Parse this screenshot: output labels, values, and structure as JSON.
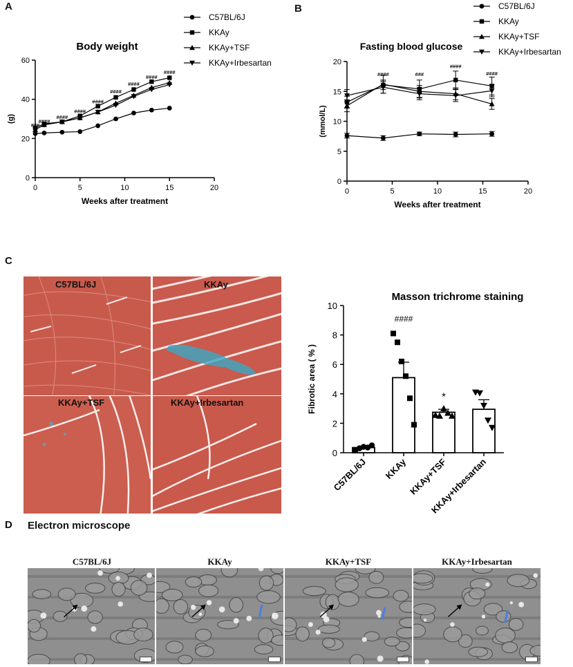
{
  "colors": {
    "stroke": "#000000",
    "tissue": "#c9574a",
    "fibrosis": "#3aa9c6",
    "em": "#8e8e8e"
  },
  "panels": {
    "a": "A",
    "b": "B",
    "c": "C",
    "d": "D"
  },
  "legend_labels": [
    "C57BL/6J",
    "KKAy",
    "KKAy+TSF",
    "KKAy+Irbesartan"
  ],
  "histology_labels": [
    "C57BL/6J",
    "KKAy",
    "KKAy+TSF",
    "KKAy+Irbesartan"
  ],
  "em_title": "Electron microscope",
  "em_labels": [
    "C57BL/6J",
    "KKAy",
    "KKAy+TSF",
    "KKAy+Irbesartan"
  ],
  "chart_data": [
    {
      "type": "line",
      "title": "Body weight",
      "xlabel": "Weeks after treatment",
      "ylabel": "(g)",
      "xlim": [
        0,
        20
      ],
      "ylim": [
        0,
        60
      ],
      "xticks": [
        0,
        5,
        10,
        15,
        20
      ],
      "yticks": [
        0,
        20,
        40,
        60
      ],
      "x": [
        0,
        1,
        3,
        5,
        7,
        9,
        11,
        13,
        15
      ],
      "series": [
        {
          "name": "C57BL/6J",
          "marker": "circle",
          "values": [
            22.5,
            22.8,
            23.2,
            23.5,
            26.5,
            30,
            33,
            34.5,
            35.5
          ]
        },
        {
          "name": "KKAy",
          "marker": "square",
          "values": [
            25.5,
            27.5,
            28.5,
            31.5,
            36.5,
            41,
            45,
            49,
            51
          ]
        },
        {
          "name": "KKAy+TSF",
          "marker": "triangle-up",
          "values": [
            24.5,
            27,
            28.5,
            30.5,
            33.5,
            38,
            42,
            46,
            48.5
          ]
        },
        {
          "name": "KKAy+Irbesartan",
          "marker": "triangle-down",
          "values": [
            24.5,
            27,
            28.5,
            30.5,
            33.5,
            37,
            41.5,
            45,
            47.5
          ]
        }
      ],
      "annotations": [
        {
          "x": 0,
          "y": 26,
          "text": "###"
        },
        {
          "x": 1,
          "y": 27.8,
          "text": "####"
        },
        {
          "x": 3,
          "y": 30,
          "text": "####"
        },
        {
          "x": 5,
          "y": 33,
          "text": "####"
        },
        {
          "x": 7,
          "y": 38,
          "text": "####"
        },
        {
          "x": 9,
          "y": 43,
          "text": "####"
        },
        {
          "x": 11,
          "y": 47,
          "text": "####"
        },
        {
          "x": 13,
          "y": 50.5,
          "text": "####"
        },
        {
          "x": 15,
          "y": 53,
          "text": "####"
        }
      ]
    },
    {
      "type": "line",
      "title": "Fasting blood glucose",
      "xlabel": "Weeks after treatment",
      "ylabel": "(mmol/L)",
      "xlim": [
        0,
        20
      ],
      "ylim": [
        0,
        20
      ],
      "xticks": [
        0,
        5,
        10,
        15,
        20
      ],
      "yticks": [
        0,
        5,
        10,
        15,
        20
      ],
      "x": [
        0,
        4,
        8,
        12,
        16
      ],
      "series": [
        {
          "name": "C57BL/6J",
          "marker": "circle",
          "values": [
            7.6,
            7.2,
            7.9,
            7.8,
            7.9
          ],
          "errors": [
            0.4,
            0.4,
            0.3,
            0.4,
            0.4
          ]
        },
        {
          "name": "KKAy",
          "marker": "square",
          "values": [
            13.2,
            16.1,
            15.4,
            16.9,
            15.9
          ],
          "errors": [
            1.0,
            0.8,
            1.5,
            1.5,
            1.5
          ]
        },
        {
          "name": "KKAy+TSF",
          "marker": "triangle-up",
          "values": [
            12.6,
            16.2,
            15.0,
            14.6,
            12.9
          ],
          "errors": [
            1.0,
            1.5,
            1.0,
            1.0,
            0.9
          ]
        },
        {
          "name": "KKAy+Irbesartan",
          "marker": "triangle-down",
          "values": [
            14.3,
            15.7,
            14.6,
            14.3,
            15.1
          ],
          "errors": [
            1.0,
            1.0,
            1.0,
            1.0,
            1.0
          ]
        }
      ],
      "annotations": [
        {
          "x": 4,
          "y": 17.6,
          "text": "####"
        },
        {
          "x": 8,
          "y": 17.6,
          "text": "###"
        },
        {
          "x": 12,
          "y": 18.9,
          "text": "####"
        },
        {
          "x": 16,
          "y": 17.7,
          "text": "####"
        }
      ]
    },
    {
      "type": "bar",
      "title": "Masson trichrome staining",
      "xlabel": "",
      "ylabel": "Fibrotic area ( % )",
      "ylim": [
        0,
        10
      ],
      "yticks": [
        0,
        2,
        4,
        6,
        8,
        10
      ],
      "categories": [
        "C57BL/6J",
        "KKAy",
        "KKAy+TSF",
        "KKAy+Irbesartan"
      ],
      "values": [
        0.35,
        5.1,
        2.75,
        2.95
      ],
      "errors": [
        0.1,
        1.05,
        0.2,
        0.65
      ],
      "points": [
        [
          0.15,
          0.3,
          0.4,
          0.35,
          0.5
        ],
        [
          8.1,
          7.5,
          6.2,
          5.2,
          3.7,
          1.9
        ],
        [
          2.55,
          2.5,
          3.0,
          2.7,
          2.5
        ],
        [
          4.1,
          4.05,
          3.2,
          2.2,
          1.7
        ]
      ],
      "markers": [
        "circle",
        "square",
        "triangle-up",
        "triangle-down"
      ],
      "annotations": [
        {
          "category": "KKAy",
          "y": 8.9,
          "text": "####"
        },
        {
          "category": "KKAy+TSF",
          "y": 3.6,
          "text": "*"
        }
      ]
    }
  ]
}
